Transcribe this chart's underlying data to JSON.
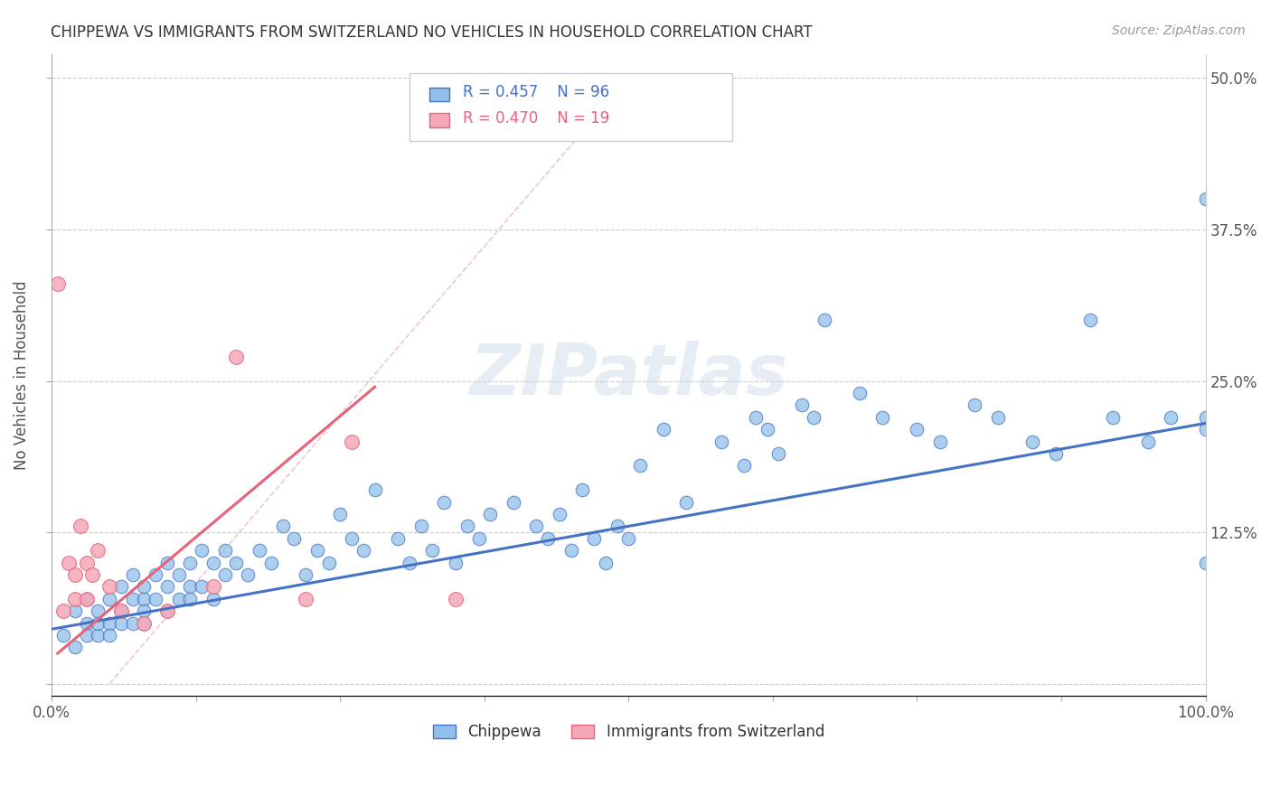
{
  "title": "CHIPPEWA VS IMMIGRANTS FROM SWITZERLAND NO VEHICLES IN HOUSEHOLD CORRELATION CHART",
  "source": "Source: ZipAtlas.com",
  "ylabel": "No Vehicles in Household",
  "xlim": [
    0.0,
    1.0
  ],
  "ylim": [
    -0.01,
    0.52
  ],
  "xticks": [
    0.0,
    0.125,
    0.25,
    0.375,
    0.5,
    0.625,
    0.75,
    0.875,
    1.0
  ],
  "xticklabels": [
    "0.0%",
    "",
    "",
    "",
    "",
    "",
    "",
    "",
    "100.0%"
  ],
  "yticks": [
    0.0,
    0.125,
    0.25,
    0.375,
    0.5
  ],
  "yticklabels_right": [
    "",
    "12.5%",
    "25.0%",
    "37.5%",
    "50.0%"
  ],
  "color_chippewa": "#92C0EA",
  "color_swiss": "#F5A8B8",
  "color_line_chippewa": "#4472C4",
  "color_line_swiss": "#E8637A",
  "color_diag": "#E8B0B8",
  "watermark": "ZIPatlas",
  "chippewa_x": [
    0.01,
    0.02,
    0.02,
    0.03,
    0.03,
    0.03,
    0.04,
    0.04,
    0.04,
    0.05,
    0.05,
    0.05,
    0.06,
    0.06,
    0.06,
    0.07,
    0.07,
    0.07,
    0.08,
    0.08,
    0.08,
    0.08,
    0.09,
    0.09,
    0.1,
    0.1,
    0.1,
    0.11,
    0.11,
    0.12,
    0.12,
    0.12,
    0.13,
    0.13,
    0.14,
    0.14,
    0.15,
    0.15,
    0.16,
    0.17,
    0.18,
    0.19,
    0.2,
    0.21,
    0.22,
    0.23,
    0.24,
    0.25,
    0.26,
    0.27,
    0.28,
    0.3,
    0.31,
    0.32,
    0.33,
    0.34,
    0.35,
    0.36,
    0.37,
    0.38,
    0.4,
    0.42,
    0.43,
    0.44,
    0.45,
    0.46,
    0.47,
    0.48,
    0.49,
    0.5,
    0.51,
    0.53,
    0.55,
    0.58,
    0.6,
    0.61,
    0.62,
    0.63,
    0.65,
    0.66,
    0.67,
    0.7,
    0.72,
    0.75,
    0.77,
    0.8,
    0.82,
    0.85,
    0.87,
    0.9,
    0.92,
    0.95,
    0.97,
    1.0,
    1.0,
    1.0,
    1.0
  ],
  "chippewa_y": [
    0.04,
    0.06,
    0.03,
    0.05,
    0.07,
    0.04,
    0.06,
    0.04,
    0.05,
    0.07,
    0.05,
    0.04,
    0.08,
    0.06,
    0.05,
    0.09,
    0.07,
    0.05,
    0.08,
    0.07,
    0.06,
    0.05,
    0.09,
    0.07,
    0.1,
    0.08,
    0.06,
    0.09,
    0.07,
    0.1,
    0.08,
    0.07,
    0.11,
    0.08,
    0.1,
    0.07,
    0.11,
    0.09,
    0.1,
    0.09,
    0.11,
    0.1,
    0.13,
    0.12,
    0.09,
    0.11,
    0.1,
    0.14,
    0.12,
    0.11,
    0.16,
    0.12,
    0.1,
    0.13,
    0.11,
    0.15,
    0.1,
    0.13,
    0.12,
    0.14,
    0.15,
    0.13,
    0.12,
    0.14,
    0.11,
    0.16,
    0.12,
    0.1,
    0.13,
    0.12,
    0.18,
    0.21,
    0.15,
    0.2,
    0.18,
    0.22,
    0.21,
    0.19,
    0.23,
    0.22,
    0.3,
    0.24,
    0.22,
    0.21,
    0.2,
    0.23,
    0.22,
    0.2,
    0.19,
    0.3,
    0.22,
    0.2,
    0.22,
    0.4,
    0.21,
    0.1,
    0.22
  ],
  "swiss_x": [
    0.005,
    0.01,
    0.015,
    0.02,
    0.02,
    0.025,
    0.03,
    0.03,
    0.035,
    0.04,
    0.05,
    0.06,
    0.08,
    0.1,
    0.14,
    0.16,
    0.22,
    0.26,
    0.35
  ],
  "swiss_y": [
    0.33,
    0.06,
    0.1,
    0.07,
    0.09,
    0.13,
    0.07,
    0.1,
    0.09,
    0.11,
    0.08,
    0.06,
    0.05,
    0.06,
    0.08,
    0.27,
    0.07,
    0.2,
    0.07
  ],
  "blue_line_x": [
    0.0,
    1.0
  ],
  "blue_line_y": [
    0.045,
    0.215
  ],
  "pink_line_x": [
    0.005,
    0.28
  ],
  "pink_line_y": [
    0.025,
    0.245
  ]
}
